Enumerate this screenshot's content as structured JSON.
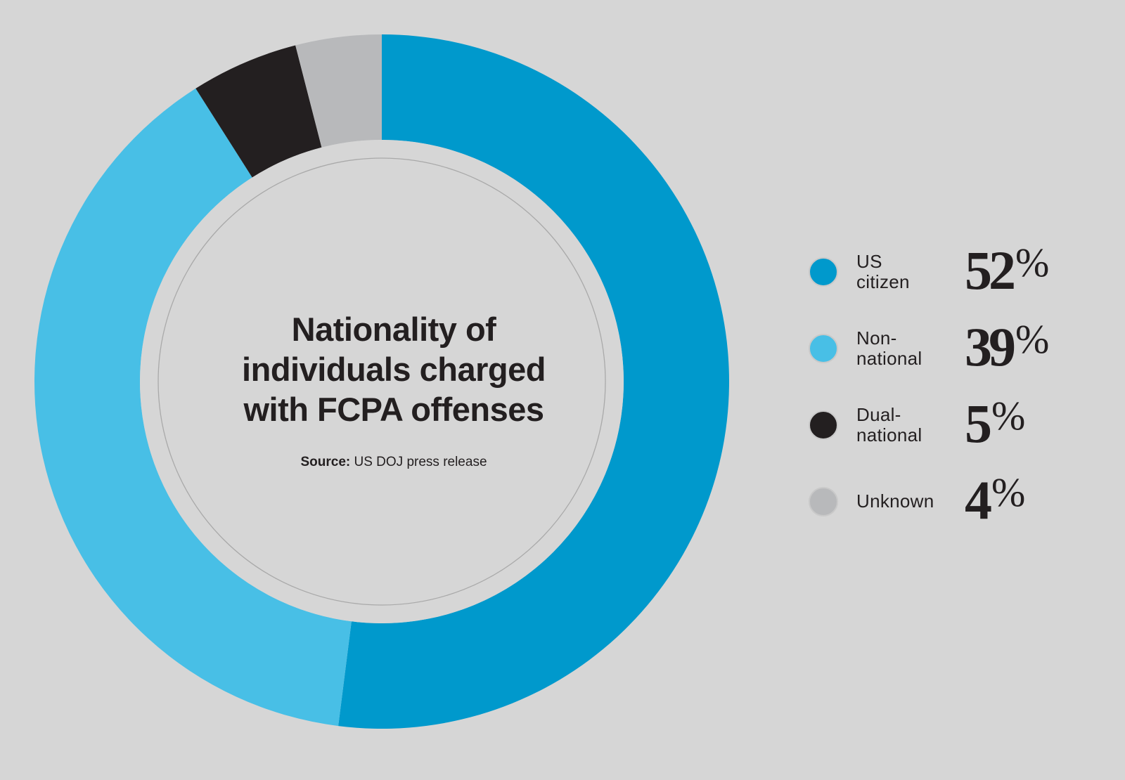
{
  "chart_data": {
    "type": "pie",
    "variant": "donut",
    "title": "Nationality of individuals charged with FCPA offenses",
    "title_lines": [
      "Nationality of",
      "individuals charged",
      "with FCPA offenses"
    ],
    "source_label": "Source:",
    "source_text": "US DOJ press release",
    "unit": "%",
    "series": [
      {
        "name": "US citizen",
        "label_lines": [
          "US",
          "citizen"
        ],
        "value": 52,
        "color": "#0099cc"
      },
      {
        "name": "Non-national",
        "label_lines": [
          "Non-",
          "national"
        ],
        "value": 39,
        "color": "#48bfe6"
      },
      {
        "name": "Dual-national",
        "label_lines": [
          "Dual-",
          "national"
        ],
        "value": 5,
        "color": "#231f20"
      },
      {
        "name": "Unknown",
        "label_lines": [
          "Unknown"
        ],
        "value": 4,
        "color": "#b8b9bb"
      }
    ],
    "legend_position": "right"
  },
  "colors": {
    "background": "#d6d6d6",
    "center_fill": "#d6d6d6",
    "text": "#231f20"
  }
}
